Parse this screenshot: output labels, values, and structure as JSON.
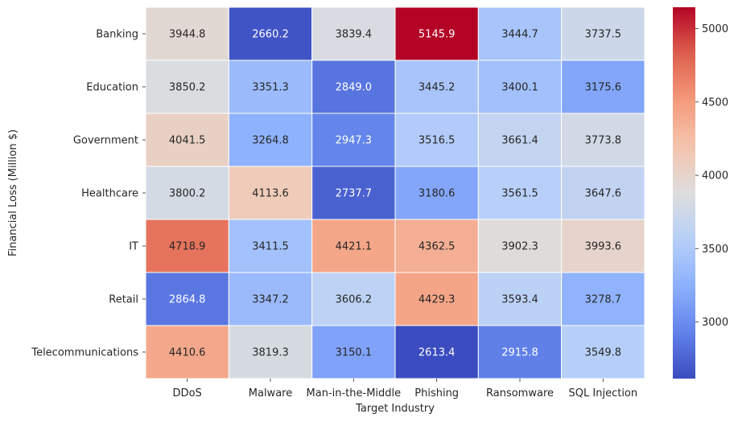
{
  "chart_data": {
    "type": "heatmap",
    "title": "",
    "xlabel": "Target Industry",
    "ylabel": "Financial Loss (Million $)",
    "x_categories": [
      "DDoS",
      "Malware",
      "Man-in-the-Middle",
      "Phishing",
      "Ransomware",
      "SQL Injection"
    ],
    "y_categories": [
      "Banking",
      "Education",
      "Government",
      "Healthcare",
      "IT",
      "Retail",
      "Telecommunications"
    ],
    "values": [
      [
        3944.8,
        2660.2,
        3839.4,
        5145.9,
        3444.7,
        3737.5
      ],
      [
        3850.2,
        3351.3,
        2849.0,
        3445.2,
        3400.1,
        3175.6
      ],
      [
        4041.5,
        3264.8,
        2947.3,
        3516.5,
        3661.4,
        3773.8
      ],
      [
        3800.2,
        4113.6,
        2737.7,
        3180.6,
        3561.5,
        3647.6
      ],
      [
        4718.9,
        3411.5,
        4421.1,
        4362.5,
        3902.3,
        3993.6
      ],
      [
        2864.8,
        3347.2,
        3606.2,
        4429.3,
        3593.4,
        3278.7
      ],
      [
        4410.6,
        3819.3,
        3150.1,
        2613.4,
        2915.8,
        3549.8
      ]
    ],
    "value_format": "0.1",
    "colormap": "coolwarm",
    "color_range": [
      2613.4,
      5145.9
    ],
    "colorbar_ticks": [
      3000,
      3500,
      4000,
      4500,
      5000
    ]
  }
}
